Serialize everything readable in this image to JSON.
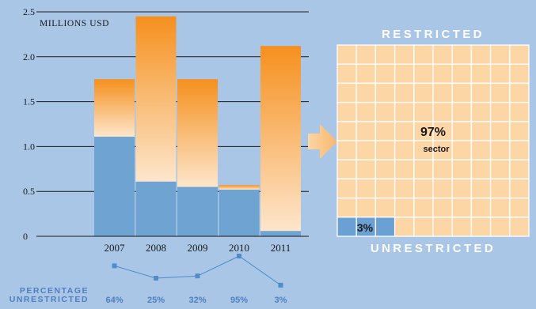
{
  "chart_data": [
    {
      "type": "bar",
      "title": "",
      "ylabel": "MILLIONS USD",
      "ylim": [
        0,
        2.5
      ],
      "yticks": [
        "0",
        "0.5",
        "1.0",
        "1.5",
        "2.0",
        "2.5"
      ],
      "categories": [
        "2007",
        "2008",
        "2009",
        "2010",
        "2011"
      ],
      "stacked": true,
      "series": [
        {
          "name": "",
          "values": [
            1.11,
            0.61,
            0.55,
            0.52,
            0.06
          ]
        },
        {
          "name": "",
          "values": [
            0.64,
            1.84,
            1.2,
            0.05,
            2.06
          ]
        }
      ],
      "colors": {
        "bottom": "#6fa3d2",
        "top_start": "#f5901e",
        "top_end": "#fde6cc"
      },
      "grid": true
    },
    {
      "type": "line",
      "label_lines": [
        "PERCENTAGE",
        "UNRESTRICTED"
      ],
      "categories": [
        "2007",
        "2008",
        "2009",
        "2010",
        "2011"
      ],
      "values": [
        64,
        25,
        32,
        95,
        3
      ],
      "value_labels": [
        "64%",
        "25%",
        "32%",
        "95%",
        "3%"
      ],
      "color": "#4f8cc9"
    },
    {
      "type": "waffle",
      "top_label": "RESTRICTED",
      "bottom_label": "UNRESTRICTED",
      "restricted_pct": "97%",
      "restricted_note": "sector",
      "unrestricted_pct": "3%",
      "colors": {
        "restricted": "#fdd6a5",
        "unrestricted": "#6aa0d3",
        "arrow": "#fbc98e"
      }
    }
  ]
}
